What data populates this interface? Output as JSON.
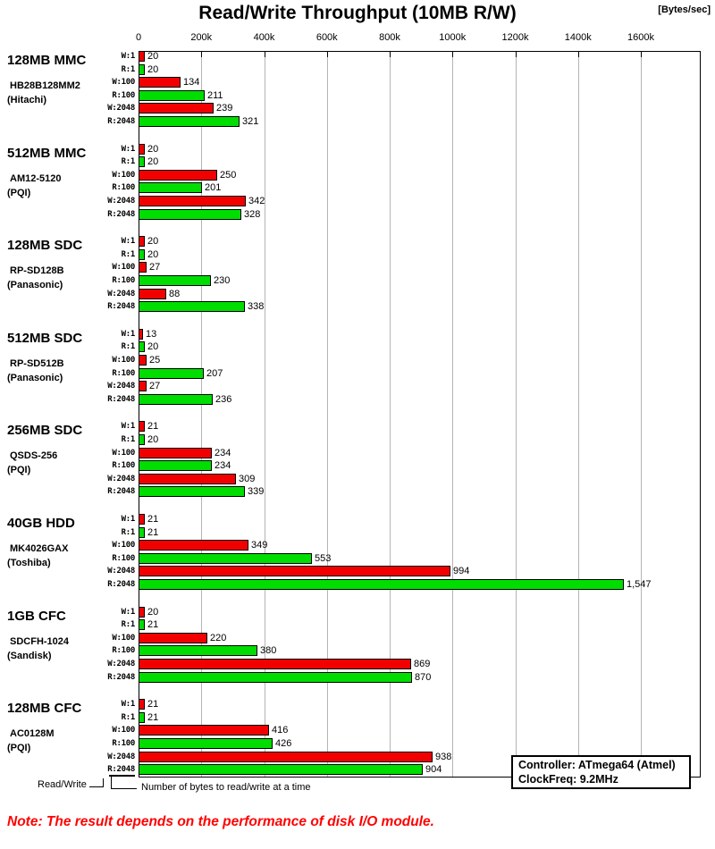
{
  "title": "Read/Write Throughput (10MB R/W)",
  "units_label": "[Bytes/sec]",
  "legend": {
    "read_write": "Read/Write",
    "bytes_note": "Number of bytes to read/write at a time"
  },
  "info_box": {
    "line1": "Controller: ATmega64 (Atmel)",
    "line2": "ClockFreq: 9.2MHz"
  },
  "note": "Note: The result depends on the performance of disk I/O module.",
  "colors": {
    "write_bar": "#f20000",
    "read_bar": "#00dd00",
    "grid": "#b4b4b4",
    "note_text": "#ff0000",
    "axis": "#000000"
  },
  "chart_data": {
    "type": "bar",
    "orientation": "horizontal",
    "title": "Read/Write Throughput (10MB R/W)",
    "xlabel": "[Bytes/sec]",
    "unit": "kBytes/sec (axis shown in Bytes/sec)",
    "xlim_k": [
      0,
      1600
    ],
    "grid": true,
    "axis_ticks": [
      "0",
      "200k",
      "400k",
      "600k",
      "800k",
      "1000k",
      "1200k",
      "1400k",
      "1600k"
    ],
    "row_labels": [
      "W:1",
      "R:1",
      "W:100",
      "R:100",
      "W:2048",
      "R:2048"
    ],
    "series_note": "W rows = write (red), R rows = read (green); number after colon = bytes per read/write call",
    "groups": [
      {
        "name": "128MB MMC",
        "model": "HB28B128MM2",
        "vendor": "(Hitachi)",
        "values_k": [
          20,
          20,
          134,
          211,
          239,
          321
        ],
        "value_labels": [
          "20",
          "20",
          "134",
          "211",
          "239",
          "321"
        ]
      },
      {
        "name": "512MB MMC",
        "model": "AM12-5120",
        "vendor": "(PQI)",
        "values_k": [
          20,
          20,
          250,
          201,
          342,
          328
        ],
        "value_labels": [
          "20",
          "20",
          "250",
          "201",
          "342",
          "328"
        ]
      },
      {
        "name": "128MB SDC",
        "model": "RP-SD128B",
        "vendor": "(Panasonic)",
        "values_k": [
          20,
          20,
          27,
          230,
          88,
          338
        ],
        "value_labels": [
          "20",
          "20",
          "27",
          "230",
          "88",
          "338"
        ]
      },
      {
        "name": "512MB SDC",
        "model": "RP-SD512B",
        "vendor": "(Panasonic)",
        "values_k": [
          13,
          20,
          25,
          207,
          27,
          236
        ],
        "value_labels": [
          "13",
          "20",
          "25",
          "207",
          "27",
          "236"
        ]
      },
      {
        "name": "256MB SDC",
        "model": "QSDS-256",
        "vendor": "(PQI)",
        "values_k": [
          21,
          20,
          234,
          234,
          309,
          339
        ],
        "value_labels": [
          "21",
          "20",
          "234",
          "234",
          "309",
          "339"
        ]
      },
      {
        "name": "40GB HDD",
        "model": "MK4026GAX",
        "vendor": "(Toshiba)",
        "values_k": [
          21,
          21,
          349,
          553,
          994,
          1547
        ],
        "value_labels": [
          "21",
          "21",
          "349",
          "553",
          "994",
          "1,547"
        ]
      },
      {
        "name": "1GB CFC",
        "model": "SDCFH-1024",
        "vendor": "(Sandisk)",
        "values_k": [
          20,
          21,
          220,
          380,
          869,
          870
        ],
        "value_labels": [
          "20",
          "21",
          "220",
          "380",
          "869",
          "870"
        ]
      },
      {
        "name": "128MB CFC",
        "model": "AC0128M",
        "vendor": "(PQI)",
        "values_k": [
          21,
          21,
          416,
          426,
          938,
          904
        ],
        "value_labels": [
          "21",
          "21",
          "416",
          "426",
          "938",
          "904"
        ]
      }
    ]
  }
}
